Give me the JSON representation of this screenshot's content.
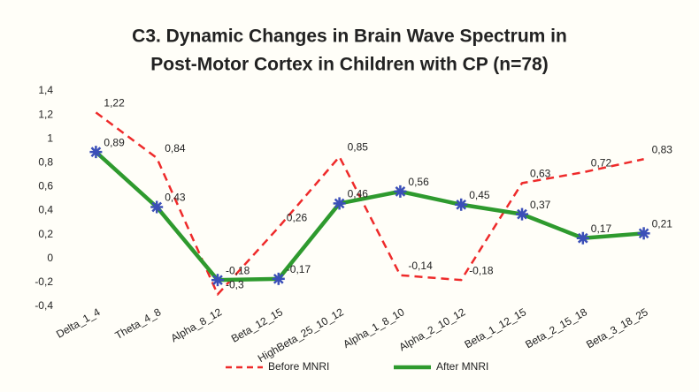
{
  "chart_data": {
    "type": "line",
    "title": [
      "C3. Dynamic Changes in Brain Wave Spectrum in",
      "Post-Motor Cortex in Children with CP (n=78)"
    ],
    "categories": [
      "Delta_1_4",
      "Theta_4_8",
      "Alpha_8_12",
      "Beta_12_15",
      "HighBeta_25_10_12",
      "Alpha_1_8_10",
      "Alpha_2_10_12",
      "Beta_1_12_15",
      "Beta_2_15_18",
      "Beta_3_18_25"
    ],
    "series": [
      {
        "name": "Before MNRI",
        "color": "#ee2a2a",
        "dash": true,
        "values": [
          1.22,
          0.84,
          -0.3,
          0.26,
          0.85,
          -0.14,
          -0.18,
          0.63,
          0.72,
          0.83
        ],
        "value_labels": [
          "1,22",
          "0,84",
          "-0,3",
          "0,26",
          "0,85",
          "-0,14",
          "-0,18",
          "0,63",
          "0,72",
          "0,83"
        ]
      },
      {
        "name": "After MNRI",
        "color": "#2e9a2e",
        "dash": false,
        "marker_color": "#3b4fb8",
        "values": [
          0.89,
          0.43,
          -0.18,
          -0.17,
          0.46,
          0.56,
          0.45,
          0.37,
          0.17,
          0.21
        ],
        "value_labels": [
          "0,89",
          "0,43",
          "-0,18",
          "-0,17",
          "0,46",
          "0,56",
          "0,45",
          "0,37",
          "0,17",
          "0,21"
        ]
      }
    ],
    "ylim": [
      -0.4,
      1.4
    ],
    "yticks": [
      {
        "value": -0.4,
        "label": "-0,4"
      },
      {
        "value": -0.2,
        "label": "-0,2"
      },
      0,
      {
        "value": 0.2,
        "label": "0,2"
      },
      {
        "value": 0.4,
        "label": "0,4"
      },
      {
        "value": 0.6,
        "label": "0,6"
      },
      {
        "value": 0.8,
        "label": "0,8"
      },
      1,
      {
        "value": 1.2,
        "label": "1,2"
      },
      {
        "value": 1.4,
        "label": "1,4"
      }
    ],
    "grid": false,
    "legend": "bottom"
  }
}
